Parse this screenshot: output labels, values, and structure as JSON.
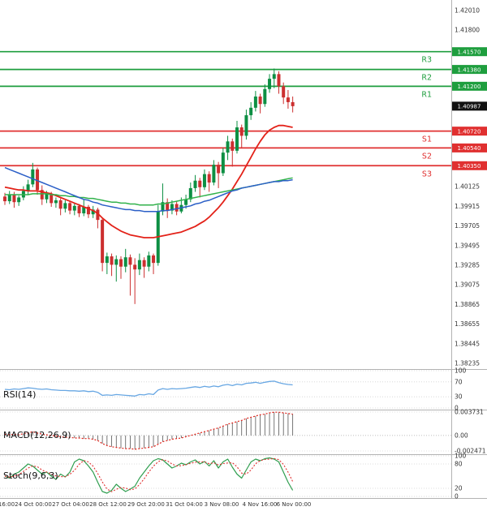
{
  "colors": {
    "bull": "#0d8f43",
    "bear": "#cc2f2f",
    "resistance": "#1e9e3e",
    "support": "#e03030",
    "current_tag": "#111111",
    "ma_fast": "#e32219",
    "ma_mid": "#31b24b",
    "ma_slow": "#2b5fc7",
    "rsi": "#68a7e3",
    "macd_line": "#e32219",
    "macd_hist": "#555555",
    "stoch_k": "#2f9e4f",
    "stoch_d": "#e03030",
    "axis_text": "#333333"
  },
  "panel_labels": {
    "rsi": "RSI(14)",
    "macd": "MACD(12,26,9)",
    "stoch": "Stoch(9,6,3)"
  },
  "time_axis": {
    "labels": [
      "16:00",
      "24 Oct 00:00",
      "27 Oct 04:00",
      "28 Oct 12:00",
      "29 Oct 20:00",
      "31 Oct 04:00",
      "3 Nov 08:00",
      "4 Nov 16:00",
      "6 Nov 00:00"
    ]
  },
  "chart_data": [
    {
      "type": "candlestick",
      "title": "Price panel with pivot support/resistance levels and moving averages",
      "ylim": [
        1.38235,
        1.4201
      ],
      "y_ticks": [
        "1.42010",
        "1.41800",
        "1.40125",
        "1.39915",
        "1.39705",
        "1.39495",
        "1.39285",
        "1.39075",
        "1.38865",
        "1.38655",
        "1.38445",
        "1.38235"
      ],
      "levels": {
        "resistance": [
          {
            "label": "R3",
            "price": "1.41570"
          },
          {
            "label": "R2",
            "price": "1.41380"
          },
          {
            "label": "R1",
            "price": "1.41200"
          }
        ],
        "support": [
          {
            "label": "S1",
            "price": "1.40720"
          },
          {
            "label": "S2",
            "price": "1.40540"
          },
          {
            "label": "S3",
            "price": "1.40350"
          }
        ],
        "current": {
          "price": "1.40987"
        }
      },
      "ohlc": [
        [
          1.4002,
          1.4006,
          1.3993,
          1.3997
        ],
        [
          1.3997,
          1.4008,
          1.3994,
          1.4004
        ],
        [
          1.4004,
          1.4007,
          1.399,
          1.3996
        ],
        [
          1.3996,
          1.4003,
          1.3992,
          1.4001
        ],
        [
          1.4001,
          1.4013,
          1.3998,
          1.4008
        ],
        [
          1.4008,
          1.402,
          1.4004,
          1.4015
        ],
        [
          1.4015,
          1.4038,
          1.4012,
          1.4031
        ],
        [
          1.4031,
          1.4033,
          1.4004,
          1.4009
        ],
        [
          1.4009,
          1.4014,
          1.3993,
          1.3999
        ],
        [
          1.3999,
          1.4008,
          1.3995,
          1.4005
        ],
        [
          1.4005,
          1.4007,
          1.3991,
          1.3995
        ],
        [
          1.3995,
          1.4001,
          1.399,
          1.3998
        ],
        [
          1.3998,
          1.4,
          1.3982,
          1.3989
        ],
        [
          1.3989,
          1.3998,
          1.3985,
          1.3995
        ],
        [
          1.3995,
          1.3997,
          1.3983,
          1.3987
        ],
        [
          1.3987,
          1.3995,
          1.3982,
          1.3992
        ],
        [
          1.3992,
          1.3994,
          1.398,
          1.3984
        ],
        [
          1.3984,
          1.3999,
          1.3981,
          1.3991
        ],
        [
          1.3991,
          1.3993,
          1.3979,
          1.3983
        ],
        [
          1.3983,
          1.3992,
          1.3979,
          1.3988
        ],
        [
          1.3988,
          1.399,
          1.3968,
          1.3977
        ],
        [
          1.3977,
          1.3979,
          1.3922,
          1.3931
        ],
        [
          1.3931,
          1.3942,
          1.3919,
          1.3938
        ],
        [
          1.3938,
          1.3941,
          1.3917,
          1.3929
        ],
        [
          1.3929,
          1.3939,
          1.3911,
          1.3935
        ],
        [
          1.3935,
          1.3938,
          1.3914,
          1.3927
        ],
        [
          1.3927,
          1.3946,
          1.3921,
          1.3937
        ],
        [
          1.3937,
          1.394,
          1.3896,
          1.3929
        ],
        [
          1.3929,
          1.3936,
          1.3887,
          1.3924
        ],
        [
          1.3924,
          1.3941,
          1.3918,
          1.3934
        ],
        [
          1.3934,
          1.3937,
          1.3915,
          1.3927
        ],
        [
          1.3927,
          1.3943,
          1.3922,
          1.3939
        ],
        [
          1.3939,
          1.3941,
          1.3919,
          1.3931
        ],
        [
          1.3931,
          1.3993,
          1.3928,
          1.3986
        ],
        [
          1.3986,
          1.4016,
          1.3982,
          1.3996
        ],
        [
          1.3996,
          1.4,
          1.3979,
          1.3987
        ],
        [
          1.3987,
          1.3998,
          1.3983,
          1.3994
        ],
        [
          1.3994,
          1.3997,
          1.3982,
          1.3986
        ],
        [
          1.3986,
          1.4001,
          1.3984,
          1.3993
        ],
        [
          1.3993,
          1.4004,
          1.3989,
          1.3999
        ],
        [
          1.3999,
          1.4017,
          1.3996,
          1.4011
        ],
        [
          1.4011,
          1.4025,
          1.4007,
          1.4019
        ],
        [
          1.4019,
          1.4022,
          1.4001,
          1.4012
        ],
        [
          1.4012,
          1.4031,
          1.4009,
          1.4026
        ],
        [
          1.4026,
          1.4029,
          1.4007,
          1.4017
        ],
        [
          1.4017,
          1.4041,
          1.4014,
          1.4036
        ],
        [
          1.4036,
          1.4039,
          1.4011,
          1.4027
        ],
        [
          1.4027,
          1.4054,
          1.4024,
          1.4049
        ],
        [
          1.4049,
          1.4067,
          1.4041,
          1.4061
        ],
        [
          1.4061,
          1.4064,
          1.4034,
          1.4051
        ],
        [
          1.4051,
          1.4083,
          1.4048,
          1.4076
        ],
        [
          1.4076,
          1.4079,
          1.4054,
          1.4067
        ],
        [
          1.4067,
          1.4095,
          1.4063,
          1.4089
        ],
        [
          1.4089,
          1.4103,
          1.4084,
          1.4097
        ],
        [
          1.4097,
          1.4115,
          1.4093,
          1.4109
        ],
        [
          1.4109,
          1.4112,
          1.4091,
          1.4101
        ],
        [
          1.4101,
          1.4122,
          1.4098,
          1.4117
        ],
        [
          1.4117,
          1.4133,
          1.4113,
          1.4128
        ],
        [
          1.4128,
          1.4139,
          1.4118,
          1.4133
        ],
        [
          1.4133,
          1.4136,
          1.4112,
          1.412
        ],
        [
          1.412,
          1.4124,
          1.4101,
          1.4108
        ],
        [
          1.4108,
          1.4116,
          1.4096,
          1.4103
        ],
        [
          1.4103,
          1.4109,
          1.4092,
          1.40987
        ]
      ],
      "overlays": [
        {
          "name": "ma-fast-red",
          "color": "#e32219",
          "values": [
            1.4012,
            1.4011,
            1.401,
            1.4009,
            1.4009,
            1.4008,
            1.4008,
            1.4008,
            1.4007,
            1.4006,
            1.4005,
            1.4003,
            1.4001,
            1.3999,
            1.3997,
            1.3995,
            1.3993,
            1.3991,
            1.3989,
            1.3987,
            1.3984,
            1.3979,
            1.3975,
            1.3971,
            1.3968,
            1.3965,
            1.3963,
            1.3961,
            1.396,
            1.3959,
            1.3958,
            1.3958,
            1.3958,
            1.3959,
            1.396,
            1.3961,
            1.3962,
            1.3963,
            1.3964,
            1.3966,
            1.3968,
            1.397,
            1.3973,
            1.3976,
            1.398,
            1.3985,
            1.399,
            1.3996,
            1.4003,
            1.401,
            1.4018,
            1.4026,
            1.4035,
            1.4044,
            1.4053,
            1.4061,
            1.4068,
            1.4073,
            1.4076,
            1.4078,
            1.4078,
            1.4077,
            1.4076
          ]
        },
        {
          "name": "ma-mid-green",
          "color": "#31b24b",
          "values": [
            1.4004,
            1.4004,
            1.4004,
            1.4004,
            1.4004,
            1.4004,
            1.4005,
            1.4005,
            1.4005,
            1.4005,
            1.4004,
            1.4004,
            1.4003,
            1.4003,
            1.4002,
            1.4002,
            1.4001,
            1.4001,
            1.4,
            1.4,
            1.3999,
            1.3998,
            1.3997,
            1.3996,
            1.3996,
            1.3995,
            1.3995,
            1.3994,
            1.3994,
            1.3993,
            1.3993,
            1.3993,
            1.3993,
            1.3994,
            1.3994,
            1.3995,
            1.3996,
            1.3997,
            1.3998,
            1.3999,
            1.4,
            1.4001,
            1.4002,
            1.4003,
            1.4004,
            1.4005,
            1.4006,
            1.4007,
            1.4008,
            1.4009,
            1.401,
            1.4011,
            1.4012,
            1.4013,
            1.4014,
            1.4015,
            1.4016,
            1.4017,
            1.4018,
            1.4019,
            1.402,
            1.4021,
            1.4022
          ]
        },
        {
          "name": "ma-slow-blue",
          "color": "#2b5fc7",
          "values": [
            1.4033,
            1.4031,
            1.4029,
            1.4027,
            1.4025,
            1.4023,
            1.4021,
            1.4019,
            1.4017,
            1.4015,
            1.4013,
            1.4011,
            1.4009,
            1.4007,
            1.4005,
            1.4003,
            1.4001,
            1.3999,
            1.3998,
            1.3996,
            1.3995,
            1.3993,
            1.3992,
            1.3991,
            1.399,
            1.3989,
            1.3988,
            1.3988,
            1.3987,
            1.3987,
            1.3986,
            1.3986,
            1.3986,
            1.3986,
            1.3987,
            1.3987,
            1.3988,
            1.3989,
            1.399,
            1.3991,
            1.3992,
            1.3994,
            1.3995,
            1.3997,
            1.3998,
            1.4,
            1.4002,
            1.4004,
            1.4006,
            1.4008,
            1.4009,
            1.4011,
            1.4012,
            1.4013,
            1.4014,
            1.4015,
            1.4016,
            1.4017,
            1.4018,
            1.4018,
            1.4019,
            1.4019,
            1.402
          ]
        }
      ]
    },
    {
      "type": "line",
      "name": "RSI(14)",
      "ylim": [
        0,
        100
      ],
      "ticks": [
        "100",
        "70",
        "30",
        "0"
      ],
      "values": [
        50,
        49,
        51,
        50,
        52,
        54,
        53,
        51,
        50,
        51,
        49,
        48,
        47,
        47,
        46,
        46,
        45,
        46,
        44,
        45,
        42,
        34,
        35,
        34,
        36,
        35,
        34,
        33,
        32,
        36,
        35,
        38,
        36,
        48,
        52,
        50,
        52,
        51,
        52,
        53,
        55,
        57,
        55,
        58,
        56,
        59,
        57,
        61,
        63,
        60,
        64,
        62,
        66,
        67,
        69,
        66,
        69,
        71,
        72,
        68,
        65,
        63,
        62
      ]
    },
    {
      "type": "macd",
      "name": "MACD(12,26,9)",
      "ylim": [
        -0.002471,
        0.003731
      ],
      "ticks": [
        "0.003731",
        "0.00",
        "-0.002471"
      ],
      "tick_values": [
        0.003731,
        0,
        -0.002471
      ],
      "values": [
        0.0002,
        0.0001,
        0.0002,
        0.0001,
        0.0003,
        0.0004,
        0.0006,
        0.0004,
        0.0002,
        0.0001,
        0.0,
        -0.0001,
        -0.0002,
        -0.0003,
        -0.0003,
        -0.0004,
        -0.0004,
        -0.0005,
        -0.0005,
        -0.0006,
        -0.0008,
        -0.0013,
        -0.0016,
        -0.0018,
        -0.0019,
        -0.002,
        -0.0021,
        -0.0021,
        -0.0022,
        -0.0021,
        -0.002,
        -0.0019,
        -0.0018,
        -0.0014,
        -0.001,
        -0.0008,
        -0.0006,
        -0.0005,
        -0.0004,
        -0.0002,
        0.0,
        0.0002,
        0.0004,
        0.0006,
        0.0008,
        0.001,
        0.0012,
        0.0015,
        0.0018,
        0.002,
        0.0022,
        0.0024,
        0.0027,
        0.0029,
        0.0031,
        0.0033,
        0.0034,
        0.0036,
        0.0037,
        0.0037,
        0.0036,
        0.0035,
        0.0034
      ]
    },
    {
      "type": "stoch",
      "name": "Stoch(9,6,3)",
      "ylim": [
        0,
        100
      ],
      "ticks": [
        "100",
        "80",
        "20",
        "0"
      ],
      "k": [
        50,
        45,
        55,
        60,
        70,
        80,
        75,
        65,
        55,
        60,
        50,
        42,
        55,
        48,
        60,
        85,
        92,
        88,
        75,
        60,
        35,
        12,
        8,
        15,
        30,
        20,
        12,
        18,
        25,
        45,
        60,
        75,
        88,
        93,
        90,
        80,
        70,
        75,
        82,
        78,
        85,
        90,
        80,
        86,
        75,
        88,
        70,
        85,
        92,
        72,
        55,
        45,
        65,
        85,
        92,
        88,
        93,
        95,
        92,
        85,
        60,
        35,
        15
      ]
    }
  ]
}
